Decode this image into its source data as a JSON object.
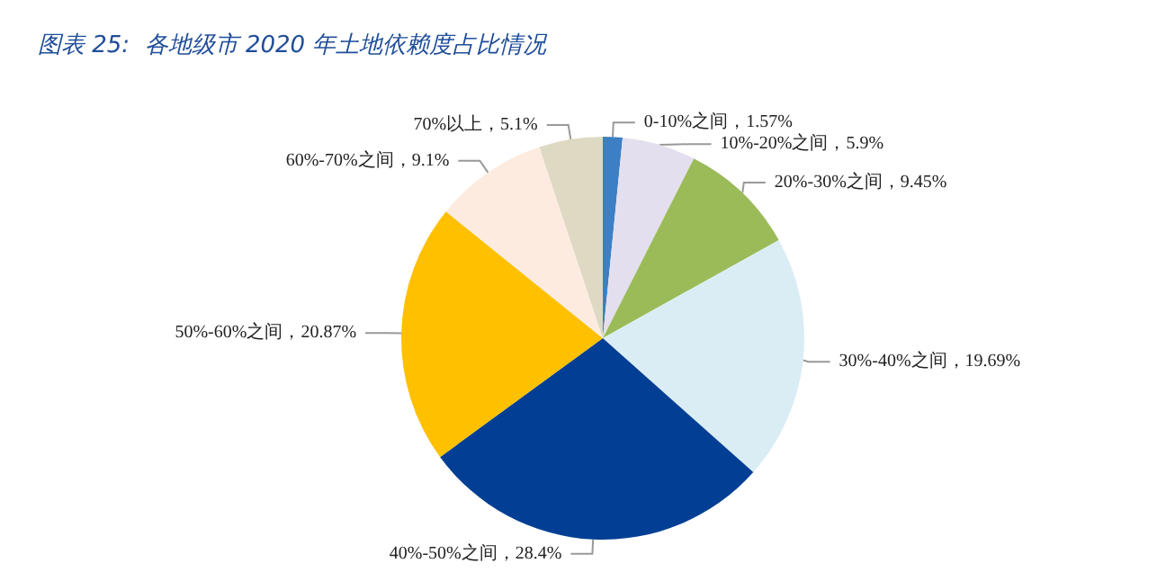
{
  "chart_data": {
    "type": "pie",
    "title": "图表 25:  各地级市 2020 年土地依赖度占比情况",
    "categories": [
      "0-10%之间",
      "10%-20%之间",
      "20%-30%之间",
      "30%-40%之间",
      "40%-50%之间",
      "50%-60%之间",
      "60%-70%之间",
      "70%以上"
    ],
    "values": [
      1.57,
      5.9,
      9.45,
      19.69,
      28.4,
      20.87,
      9.1,
      5.1
    ],
    "value_labels": [
      "1.57%",
      "5.9%",
      "9.45%",
      "19.69%",
      "28.4%",
      "20.87%",
      "9.1%",
      "5.1%"
    ],
    "colors": [
      "#3d7fc4",
      "#e4dfee",
      "#9bbb59",
      "#daedf5",
      "#023f94",
      "#ffc000",
      "#fcebde",
      "#ddd9c3"
    ],
    "legend": false
  }
}
